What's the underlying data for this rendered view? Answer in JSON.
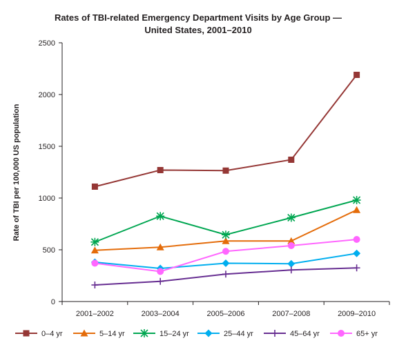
{
  "chart_data": {
    "type": "line",
    "title": [
      "Rates of TBI-related Emergency Department Visits by Age Group —",
      "United States, 2001–2010"
    ],
    "xlabel": "",
    "ylabel": "Rate of TBI per 100,000 US population",
    "categories": [
      "2001–2002",
      "2003–2004",
      "2005–2006",
      "2007–2008",
      "2009–2010"
    ],
    "ylim": [
      0,
      2500
    ],
    "yticks": [
      "0",
      "500",
      "1000",
      "1500",
      "2000",
      "2500"
    ],
    "grid": false,
    "legend_position": "bottom",
    "series": [
      {
        "name": "0–4 yr",
        "color": "#953735",
        "marker": "square",
        "values": [
          1110,
          1270,
          1265,
          1370,
          2190
        ]
      },
      {
        "name": "5–14 yr",
        "color": "#e46c0a",
        "marker": "triangle",
        "values": [
          495,
          525,
          585,
          585,
          885
        ]
      },
      {
        "name": "15–24 yr",
        "color": "#00a651",
        "marker": "asterisk",
        "values": [
          575,
          825,
          645,
          810,
          980
        ]
      },
      {
        "name": "25–44 yr",
        "color": "#00aeef",
        "marker": "diamond",
        "values": [
          380,
          320,
          370,
          365,
          465
        ]
      },
      {
        "name": "45–64 yr",
        "color": "#662d91",
        "marker": "plus",
        "values": [
          160,
          195,
          265,
          305,
          325
        ]
      },
      {
        "name": "65+ yr",
        "color": "#ff66ff",
        "marker": "circle",
        "values": [
          370,
          290,
          485,
          540,
          600
        ]
      }
    ]
  }
}
